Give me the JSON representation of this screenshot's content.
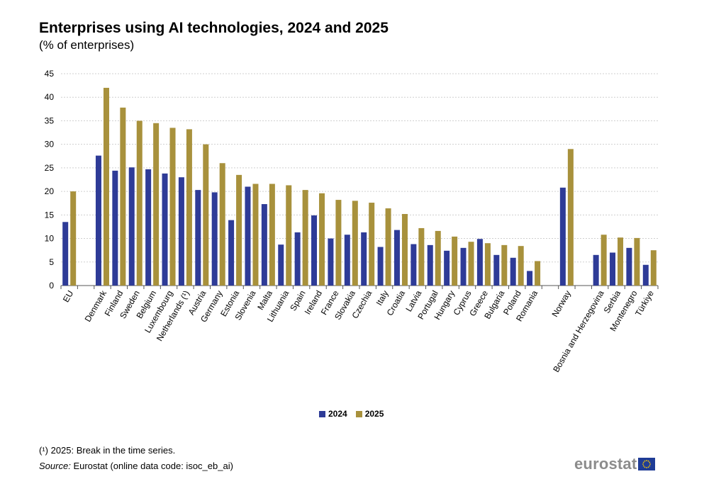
{
  "colors": {
    "s2024": "#2e3b97",
    "s2025": "#a8913c",
    "grid": "#cfcfcf",
    "axis": "#555555"
  },
  "chart_data": {
    "type": "bar",
    "title": "Enterprises using AI technologies, 2024 and 2025",
    "subtitle": "(% of enterprises)",
    "xlabel": "",
    "ylabel": "",
    "ylim": [
      0,
      45
    ],
    "yticks": [
      0,
      5,
      10,
      15,
      20,
      25,
      30,
      35,
      40,
      45
    ],
    "grid": true,
    "legend_position": "bottom-center",
    "categories": [
      "EU",
      "Denmark",
      "Finland",
      "Sweden",
      "Belgium",
      "Luxembourg",
      "Netherlands (¹)",
      "Austria",
      "Germany",
      "Estonia",
      "Slovenia",
      "Malta",
      "Lithuania",
      "Spain",
      "Ireland",
      "France",
      "Slovakia",
      "Czechia",
      "Italy",
      "Croatia",
      "Latvia",
      "Portugal",
      "Hungary",
      "Cyprus",
      "Greece",
      "Bulgaria",
      "Poland",
      "Romania",
      "Norway",
      "Bosnia and Herzegovina",
      "Serbia",
      "Montenegro",
      "Türkiye"
    ],
    "groups": [
      1,
      27,
      1,
      4
    ],
    "series": [
      {
        "name": "2024",
        "values": [
          13.5,
          27.6,
          24.4,
          25.1,
          24.7,
          23.8,
          23.0,
          20.3,
          19.8,
          13.9,
          21.0,
          17.3,
          8.7,
          11.3,
          14.9,
          10.0,
          10.8,
          11.3,
          8.2,
          11.8,
          8.8,
          8.6,
          7.4,
          8.0,
          9.9,
          6.5,
          5.9,
          3.1,
          20.8,
          6.5,
          7.0,
          8.0,
          4.4
        ]
      },
      {
        "name": "2025",
        "values": [
          20.0,
          42.0,
          37.8,
          35.0,
          34.5,
          33.5,
          33.2,
          30.0,
          26.0,
          23.5,
          21.6,
          21.6,
          21.3,
          20.3,
          19.6,
          18.2,
          18.0,
          17.6,
          16.4,
          15.2,
          12.2,
          11.6,
          10.4,
          9.3,
          9.0,
          8.6,
          8.4,
          5.2,
          29.0,
          10.8,
          10.2,
          10.1,
          7.5
        ]
      }
    ]
  },
  "footnote": "(¹) 2025: Break in the time series.",
  "source": {
    "label": "Source:",
    "text": "Eurostat (online data code: isoc_eb_ai)"
  },
  "logo": {
    "text": "eurostat",
    "flag_icon": "eu-flag-icon"
  }
}
